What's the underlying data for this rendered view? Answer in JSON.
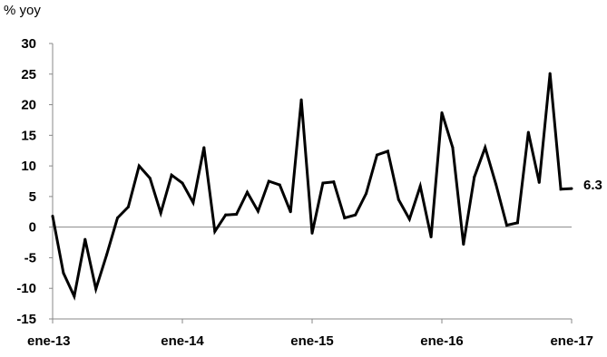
{
  "chart_data": {
    "type": "line",
    "title": "",
    "ylabel": "% yoy",
    "xlabel": "",
    "ylim": [
      -15,
      30
    ],
    "y_ticks": [
      30,
      25,
      20,
      15,
      10,
      5,
      0,
      -5,
      -10,
      -15
    ],
    "x_ticks": [
      "ene-13",
      "ene-14",
      "ene-15",
      "ene-16",
      "ene-17"
    ],
    "grid": false,
    "line_color": "#000000",
    "end_label": "6.3",
    "series": [
      {
        "values": [
          1.8,
          -7.5,
          -11.3,
          -2.0,
          -10.1,
          -4.5,
          1.5,
          3.3,
          10.0,
          8.0,
          2.3,
          8.5,
          7.2,
          4.0,
          13.0,
          -0.7,
          2.0,
          2.1,
          5.7,
          2.6,
          7.5,
          6.9,
          2.5,
          20.8,
          -1.0,
          7.2,
          7.4,
          1.5,
          2.0,
          5.5,
          11.8,
          12.4,
          4.5,
          1.3,
          6.7,
          -1.6,
          18.7,
          13.0,
          -2.8,
          8.2,
          13.0,
          7.0,
          0.3,
          0.7,
          15.5,
          7.3,
          25.1,
          6.2,
          6.3
        ]
      }
    ]
  }
}
